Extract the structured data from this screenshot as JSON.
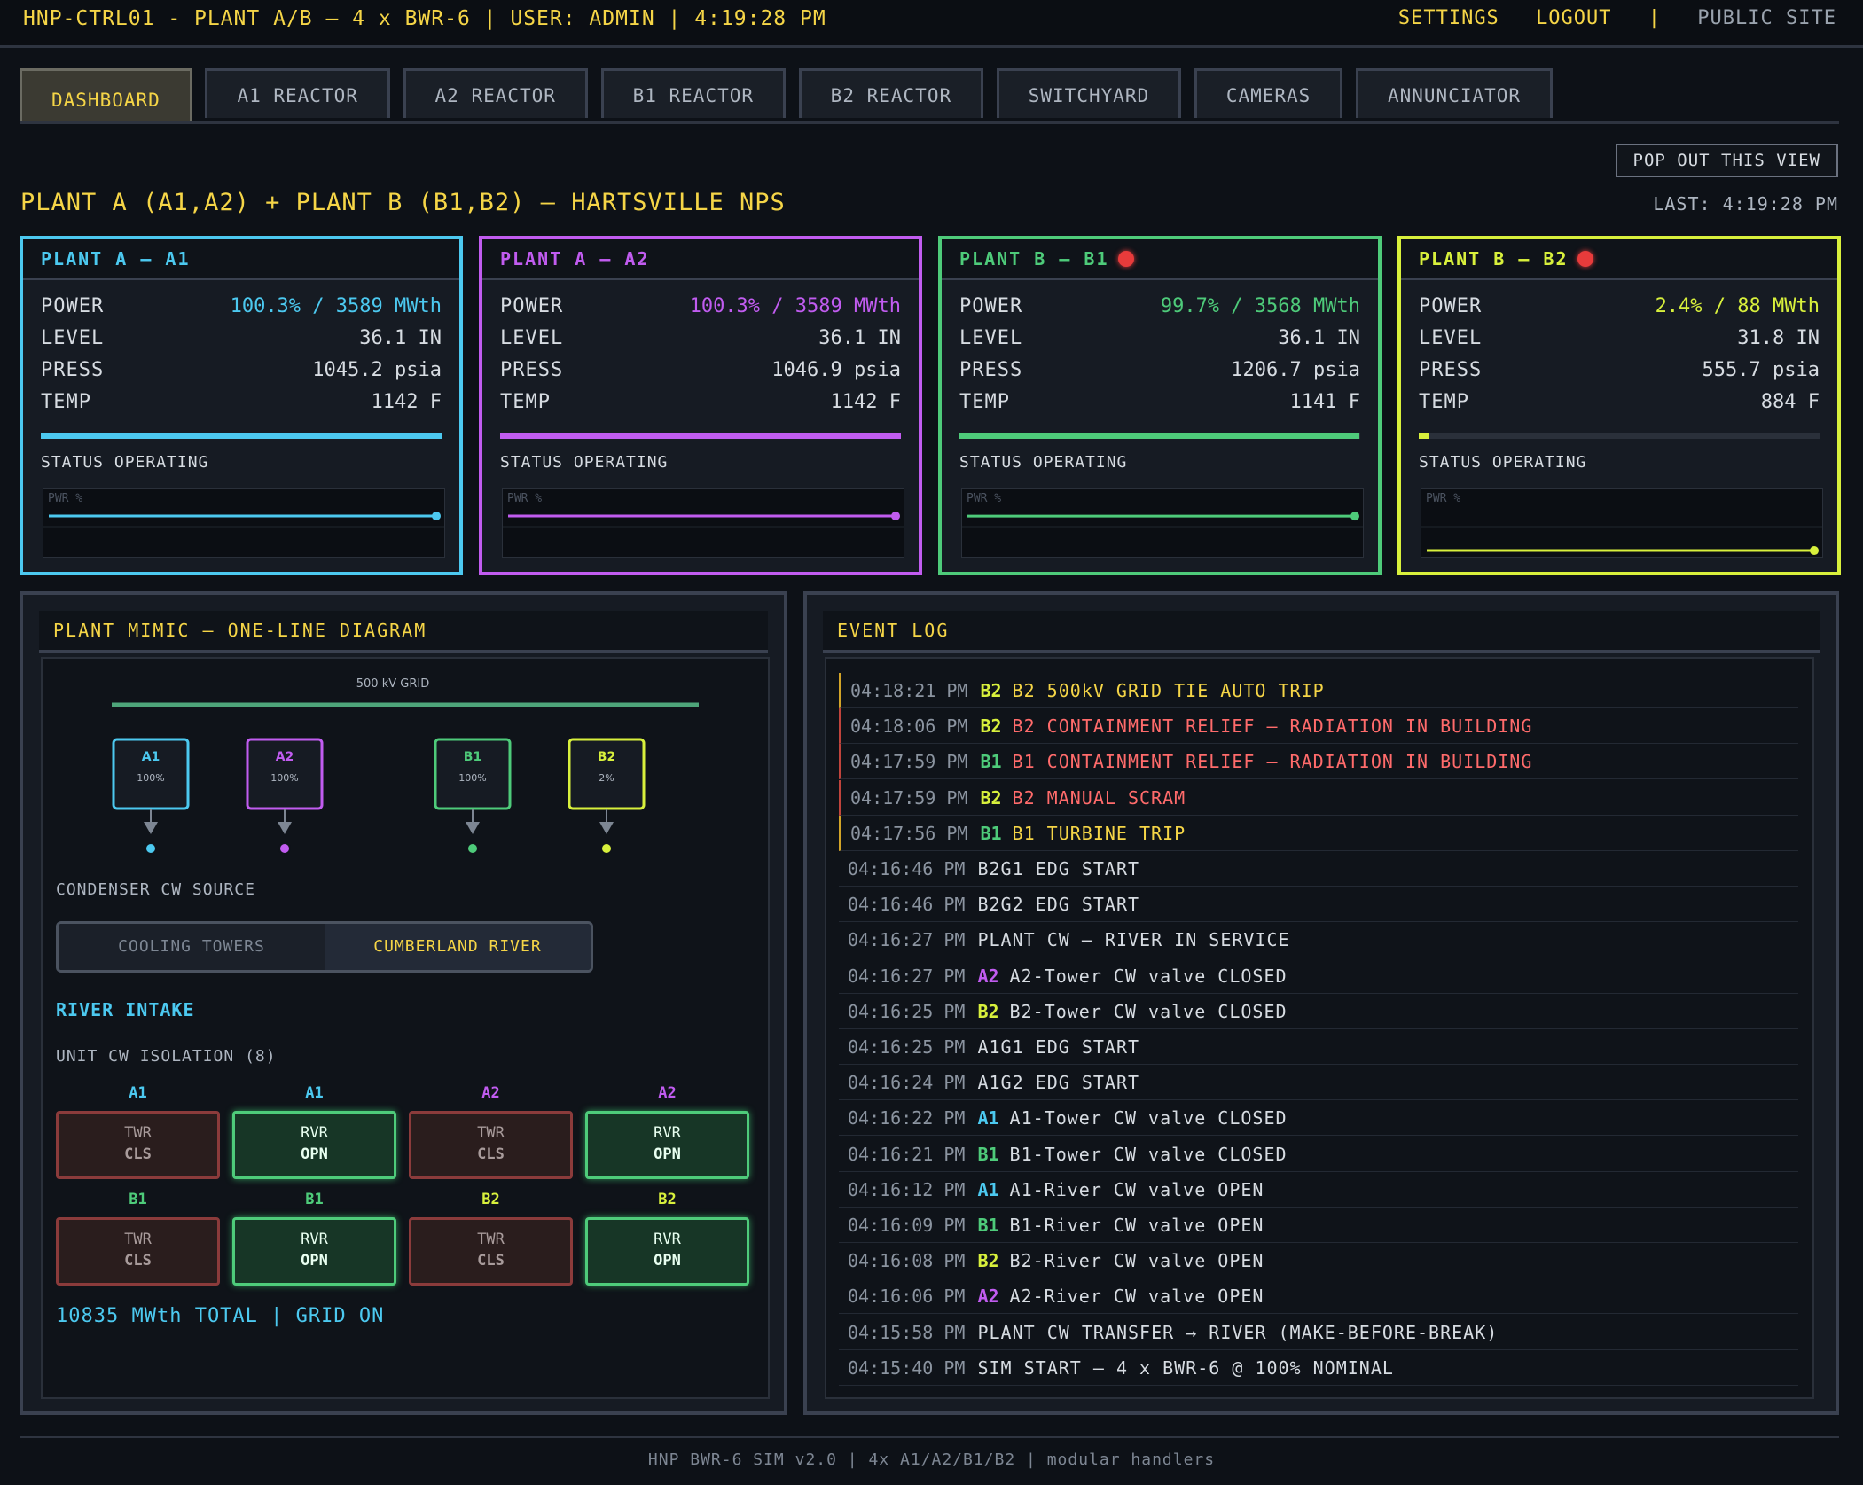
{
  "topbar": {
    "title": "HNP-CTRL01 - PLANT A/B — 4 x BWR-6 | USER: ADMIN | 4:19:28 PM",
    "settings": "SETTINGS",
    "logout": "LOGOUT",
    "sep": "|",
    "public": "PUBLIC SITE"
  },
  "tabs": [
    "DASHBOARD",
    "A1 REACTOR",
    "A2 REACTOR",
    "B1 REACTOR",
    "B2 REACTOR",
    "SWITCHYARD",
    "CAMERAS",
    "ANNUNCIATOR"
  ],
  "popout": "POP OUT THIS VIEW",
  "heading": "PLANT A (A1,A2) + PLANT B (B1,B2) — HARTSVILLE NPS",
  "last_update": "LAST: 4:19:28 PM",
  "labels": {
    "power": "POWER",
    "level": "LEVEL",
    "press": "PRESS",
    "temp": "TEMP",
    "spark": "PWR %"
  },
  "colors": {
    "A1": "#4cc9f0",
    "A2": "#c15cf0",
    "B1": "#4ecb7a",
    "B2": "#d8f03c",
    "alarm": "#e83b3b"
  },
  "units": [
    {
      "id": "A1",
      "title": "PLANT A — A1",
      "alarm": false,
      "power": "100.3% / 3589 MWth",
      "power_pct": 100.3,
      "level": "36.1 IN",
      "press": "1045.2 psia",
      "temp": "1142 F",
      "status": "STATUS OPERATING"
    },
    {
      "id": "A2",
      "title": "PLANT A — A2",
      "alarm": false,
      "power": "100.3% / 3589 MWth",
      "power_pct": 100.3,
      "level": "36.1 IN",
      "press": "1046.9 psia",
      "temp": "1142 F",
      "status": "STATUS OPERATING"
    },
    {
      "id": "B1",
      "title": "PLANT B — B1",
      "alarm": true,
      "power": "99.7% / 3568 MWth",
      "power_pct": 99.7,
      "level": "36.1 IN",
      "press": "1206.7 psia",
      "temp": "1141 F",
      "status": "STATUS OPERATING"
    },
    {
      "id": "B2",
      "title": "PLANT B — B2",
      "alarm": true,
      "power": "2.4% / 88 MWth",
      "power_pct": 2.4,
      "level": "31.8 IN",
      "press": "555.7 psia",
      "temp": "884 F",
      "status": "STATUS OPERATING"
    }
  ],
  "mimic": {
    "title": "PLANT MIMIC — ONE-LINE DIAGRAM",
    "grid_label": "500 kV GRID",
    "boxes": [
      {
        "id": "A1",
        "pct": "100%"
      },
      {
        "id": "A2",
        "pct": "100%"
      },
      {
        "id": "B1",
        "pct": "100%"
      },
      {
        "id": "B2",
        "pct": "2%"
      }
    ],
    "cw_source_label": "CONDENSER CW SOURCE",
    "cw_options": [
      "COOLING TOWERS",
      "CUMBERLAND RIVER"
    ],
    "cw_selected": "CUMBERLAND RIVER",
    "intake_label": "RIVER INTAKE",
    "isolation_label": "UNIT CW ISOLATION (8)",
    "valves": [
      {
        "unit": "A1",
        "type": "TWR",
        "state": "CLS"
      },
      {
        "unit": "A1",
        "type": "RVR",
        "state": "OPN"
      },
      {
        "unit": "A2",
        "type": "TWR",
        "state": "CLS"
      },
      {
        "unit": "A2",
        "type": "RVR",
        "state": "OPN"
      },
      {
        "unit": "B1",
        "type": "TWR",
        "state": "CLS"
      },
      {
        "unit": "B1",
        "type": "RVR",
        "state": "OPN"
      },
      {
        "unit": "B2",
        "type": "TWR",
        "state": "CLS"
      },
      {
        "unit": "B2",
        "type": "RVR",
        "state": "OPN"
      }
    ],
    "total": "10835 MWth TOTAL | GRID ON"
  },
  "event_log": {
    "title": "EVENT LOG",
    "events": [
      {
        "time": "04:18:21 PM",
        "unit": "B2",
        "msg": "B2 500kV GRID TIE AUTO TRIP",
        "level": "warn"
      },
      {
        "time": "04:18:06 PM",
        "unit": "B2",
        "msg": "B2 CONTAINMENT RELIEF — RADIATION IN BUILDING",
        "level": "crit"
      },
      {
        "time": "04:17:59 PM",
        "unit": "B1",
        "msg": "B1 CONTAINMENT RELIEF — RADIATION IN BUILDING",
        "level": "crit"
      },
      {
        "time": "04:17:59 PM",
        "unit": "B2",
        "msg": "B2 MANUAL SCRAM",
        "level": "crit"
      },
      {
        "time": "04:17:56 PM",
        "unit": "B1",
        "msg": "B1 TURBINE TRIP",
        "level": "warn"
      },
      {
        "time": "04:16:46 PM",
        "unit": "",
        "msg": "B2G1 EDG START",
        "level": "info"
      },
      {
        "time": "04:16:46 PM",
        "unit": "",
        "msg": "B2G2 EDG START",
        "level": "info"
      },
      {
        "time": "04:16:27 PM",
        "unit": "",
        "msg": "PLANT CW — RIVER IN SERVICE",
        "level": "info"
      },
      {
        "time": "04:16:27 PM",
        "unit": "A2",
        "msg": "A2-Tower CW valve CLOSED",
        "level": "info"
      },
      {
        "time": "04:16:25 PM",
        "unit": "B2",
        "msg": "B2-Tower CW valve CLOSED",
        "level": "info"
      },
      {
        "time": "04:16:25 PM",
        "unit": "",
        "msg": "A1G1 EDG START",
        "level": "info"
      },
      {
        "time": "04:16:24 PM",
        "unit": "",
        "msg": "A1G2 EDG START",
        "level": "info"
      },
      {
        "time": "04:16:22 PM",
        "unit": "A1",
        "msg": "A1-Tower CW valve CLOSED",
        "level": "info"
      },
      {
        "time": "04:16:21 PM",
        "unit": "B1",
        "msg": "B1-Tower CW valve CLOSED",
        "level": "info"
      },
      {
        "time": "04:16:12 PM",
        "unit": "A1",
        "msg": "A1-River CW valve OPEN",
        "level": "info"
      },
      {
        "time": "04:16:09 PM",
        "unit": "B1",
        "msg": "B1-River CW valve OPEN",
        "level": "info"
      },
      {
        "time": "04:16:08 PM",
        "unit": "B2",
        "msg": "B2-River CW valve OPEN",
        "level": "info"
      },
      {
        "time": "04:16:06 PM",
        "unit": "A2",
        "msg": "A2-River CW valve OPEN",
        "level": "info"
      },
      {
        "time": "04:15:58 PM",
        "unit": "",
        "msg": "PLANT CW TRANSFER → RIVER (MAKE-BEFORE-BREAK)",
        "level": "info"
      },
      {
        "time": "04:15:40 PM",
        "unit": "",
        "msg": "SIM START — 4 x BWR-6 @ 100% NOMINAL",
        "level": "info"
      }
    ]
  },
  "footer": "HNP BWR-6 SIM v2.0 | 4x A1/A2/B1/B2 | modular handlers"
}
